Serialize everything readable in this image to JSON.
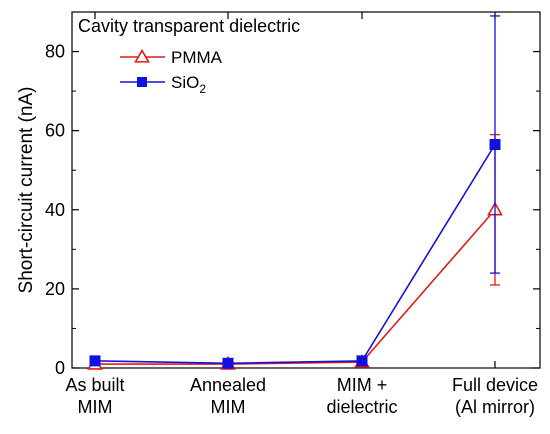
{
  "chart_data": {
    "type": "line",
    "title": "",
    "xlabel": "",
    "ylabel": "Short-circuit current (nA)",
    "ylim": [
      0,
      90
    ],
    "yticks": [
      0,
      20,
      40,
      60,
      80
    ],
    "grid": false,
    "categories": [
      [
        "As built",
        "MIM"
      ],
      [
        "Annealed",
        "MIM"
      ],
      [
        "MIM +",
        "dielectric"
      ],
      [
        "Full device",
        "(Al mirror)"
      ]
    ],
    "legend": {
      "title": "Cavity transparent dielectric",
      "placement": "top-left"
    },
    "series": [
      {
        "name": "PMMA",
        "name_main": "PMMA",
        "name_sub": "",
        "color": "#e31a1c",
        "marker": "open-triangle",
        "values": [
          1.0,
          1.0,
          1.5,
          40.0
        ],
        "error": [
          0.5,
          0.5,
          0.5,
          19.0
        ]
      },
      {
        "name": "SiO2",
        "name_main": "SiO",
        "name_sub": "2",
        "color": "#1010e0",
        "marker": "filled-square",
        "values": [
          1.8,
          1.2,
          1.8,
          56.5
        ],
        "error": [
          0.8,
          0.6,
          0.6,
          32.5
        ]
      }
    ]
  }
}
